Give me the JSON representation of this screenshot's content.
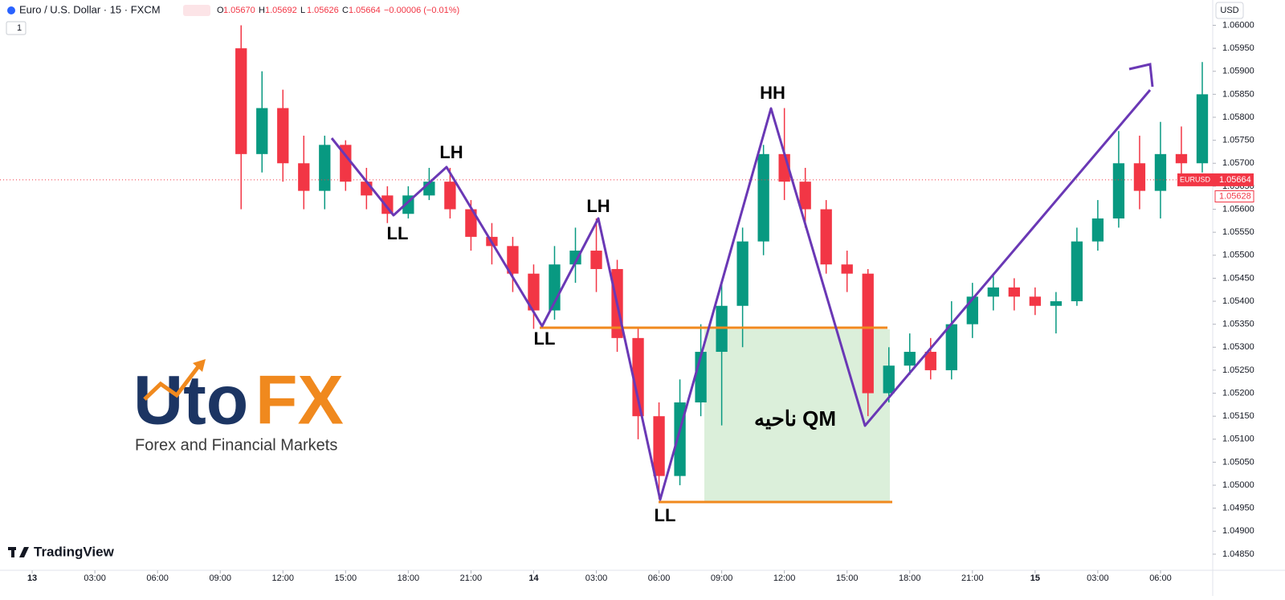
{
  "header": {
    "title": "Euro / U.S. Dollar · 15 · FXCM",
    "ohlc": [
      {
        "label": "O",
        "value": "1.05670"
      },
      {
        "label": "H",
        "value": "1.05692"
      },
      {
        "label": "L",
        "value": "1.05626"
      },
      {
        "label": "C",
        "value": "1.05664"
      }
    ],
    "change": "−0.00006 (−0.01%)",
    "interval_badge": "1",
    "currency": "USD"
  },
  "logo": {
    "part1": "Uto",
    "part2": "FX",
    "tagline": "Forex and Financial Markets"
  },
  "watermark": "TradingView",
  "annotations": {
    "labels": [
      "LL",
      "LH",
      "LH",
      "LL",
      "LL",
      "HH"
    ],
    "zone": "ناحیه QM"
  },
  "chart_data": {
    "type": "candlestick",
    "x": [
      10,
      11,
      12,
      13,
      14,
      15,
      16,
      17,
      18,
      19,
      20,
      21,
      22,
      23,
      24,
      25,
      26,
      27,
      28,
      29,
      30,
      31,
      32,
      33,
      34,
      35,
      36,
      37,
      38,
      39,
      40,
      41,
      42,
      43,
      44,
      45,
      46,
      47,
      48,
      49,
      50,
      51,
      52,
      53,
      54,
      55,
      56
    ],
    "open": [
      1.0595,
      1.0572,
      1.0582,
      1.057,
      1.0564,
      1.0574,
      1.0566,
      1.0563,
      1.0559,
      1.0563,
      1.0566,
      1.056,
      1.0554,
      1.0552,
      1.0546,
      1.0538,
      1.0548,
      1.0551,
      1.0547,
      1.0532,
      1.0515,
      1.0502,
      1.0518,
      1.0529,
      1.0539,
      1.0553,
      1.0572,
      1.0566,
      1.056,
      1.0548,
      1.0546,
      1.052,
      1.0526,
      1.0529,
      1.0525,
      1.0535,
      1.0541,
      1.0543,
      1.0541,
      1.0539,
      1.054,
      1.0553,
      1.0558,
      1.057,
      1.0564,
      1.0572,
      1.057
    ],
    "high": [
      1.06,
      1.059,
      1.0586,
      1.0576,
      1.0576,
      1.0575,
      1.0569,
      1.0565,
      1.0565,
      1.0569,
      1.0569,
      1.0562,
      1.0557,
      1.0554,
      1.0548,
      1.0552,
      1.0556,
      1.0558,
      1.0549,
      1.0534,
      1.0518,
      1.0523,
      1.0535,
      1.0544,
      1.0556,
      1.0574,
      1.0582,
      1.0569,
      1.0562,
      1.0551,
      1.0547,
      1.053,
      1.0533,
      1.0532,
      1.054,
      1.0544,
      1.0546,
      1.0545,
      1.0543,
      1.0542,
      1.0556,
      1.0562,
      1.0577,
      1.0576,
      1.0579,
      1.0578,
      1.0592
    ],
    "low": [
      1.056,
      1.0568,
      1.0566,
      1.056,
      1.056,
      1.0564,
      1.056,
      1.0557,
      1.0558,
      1.0562,
      1.0558,
      1.0551,
      1.0548,
      1.0542,
      1.0534,
      1.0536,
      1.0544,
      1.0542,
      1.0529,
      1.051,
      1.0497,
      1.05,
      1.0515,
      1.0513,
      1.053,
      1.055,
      1.0562,
      1.0556,
      1.0546,
      1.0542,
      1.0515,
      1.0518,
      1.0524,
      1.0523,
      1.0523,
      1.0532,
      1.0538,
      1.0538,
      1.0537,
      1.0533,
      1.0539,
      1.0551,
      1.0556,
      1.056,
      1.0558,
      1.0566,
      1.0568
    ],
    "close": [
      1.0572,
      1.0582,
      1.057,
      1.0564,
      1.0574,
      1.0566,
      1.0563,
      1.0559,
      1.0563,
      1.0566,
      1.056,
      1.0554,
      1.0552,
      1.0546,
      1.0538,
      1.0548,
      1.0551,
      1.0547,
      1.0532,
      1.0515,
      1.0502,
      1.0518,
      1.0529,
      1.0539,
      1.0553,
      1.0572,
      1.0566,
      1.056,
      1.0548,
      1.0546,
      1.052,
      1.0526,
      1.0529,
      1.0525,
      1.0535,
      1.0541,
      1.0543,
      1.0541,
      1.0539,
      1.054,
      1.0553,
      1.0558,
      1.057,
      1.0564,
      1.0572,
      1.057,
      1.0585
    ],
    "up_color": "#089981",
    "down_color": "#f23645",
    "xlim": [
      -1.54,
      56.5
    ],
    "xticks": [
      {
        "value": 0,
        "label": "13"
      },
      {
        "value": 3,
        "label": "03:00"
      },
      {
        "value": 6,
        "label": "06:00"
      },
      {
        "value": 9,
        "label": "09:00"
      },
      {
        "value": 12,
        "label": "12:00"
      },
      {
        "value": 15,
        "label": "15:00"
      },
      {
        "value": 18,
        "label": "18:00"
      },
      {
        "value": 21,
        "label": "21:00"
      },
      {
        "value": 24,
        "label": "14"
      },
      {
        "value": 27,
        "label": "03:00"
      },
      {
        "value": 30,
        "label": "06:00"
      },
      {
        "value": 33,
        "label": "09:00"
      },
      {
        "value": 36,
        "label": "12:00"
      },
      {
        "value": 39,
        "label": "15:00"
      },
      {
        "value": 42,
        "label": "18:00"
      },
      {
        "value": 45,
        "label": "21:00"
      },
      {
        "value": 48,
        "label": "15"
      },
      {
        "value": 51,
        "label": "03:00"
      },
      {
        "value": 54,
        "label": "06:00"
      }
    ],
    "ylim": [
      1.04815,
      1.06055
    ],
    "yticks": [
      {
        "value": 1.0485,
        "label": "1.04850"
      },
      {
        "value": 1.049,
        "label": "1.04900"
      },
      {
        "value": 1.0495,
        "label": "1.04950"
      },
      {
        "value": 1.05,
        "label": "1.05000"
      },
      {
        "value": 1.0505,
        "label": "1.05050"
      },
      {
        "value": 1.051,
        "label": "1.05100"
      },
      {
        "value": 1.0515,
        "label": "1.05150"
      },
      {
        "value": 1.052,
        "label": "1.05200"
      },
      {
        "value": 1.0525,
        "label": "1.05250"
      },
      {
        "value": 1.053,
        "label": "1.05300"
      },
      {
        "value": 1.0535,
        "label": "1.05350"
      },
      {
        "value": 1.054,
        "label": "1.05400"
      },
      {
        "value": 1.0545,
        "label": "1.05450"
      },
      {
        "value": 1.055,
        "label": "1.05500"
      },
      {
        "value": 1.0555,
        "label": "1.05550"
      },
      {
        "value": 1.056,
        "label": "1.05600"
      },
      {
        "value": 1.0565,
        "label": "1.05650"
      },
      {
        "value": 1.057,
        "label": "1.05700"
      },
      {
        "value": 1.0575,
        "label": "1.05750"
      },
      {
        "value": 1.058,
        "label": "1.05800"
      },
      {
        "value": 1.0585,
        "label": "1.05850"
      },
      {
        "value": 1.059,
        "label": "1.05900"
      },
      {
        "value": 1.0595,
        "label": "1.05950"
      },
      {
        "value": 1.06,
        "label": "1.06000"
      }
    ],
    "last_price": {
      "symbol": "EURUSD",
      "value": 1.05664,
      "label": "1.05664"
    },
    "marker_price": {
      "value": 1.05628,
      "label": "1.05628"
    },
    "grid": false
  }
}
